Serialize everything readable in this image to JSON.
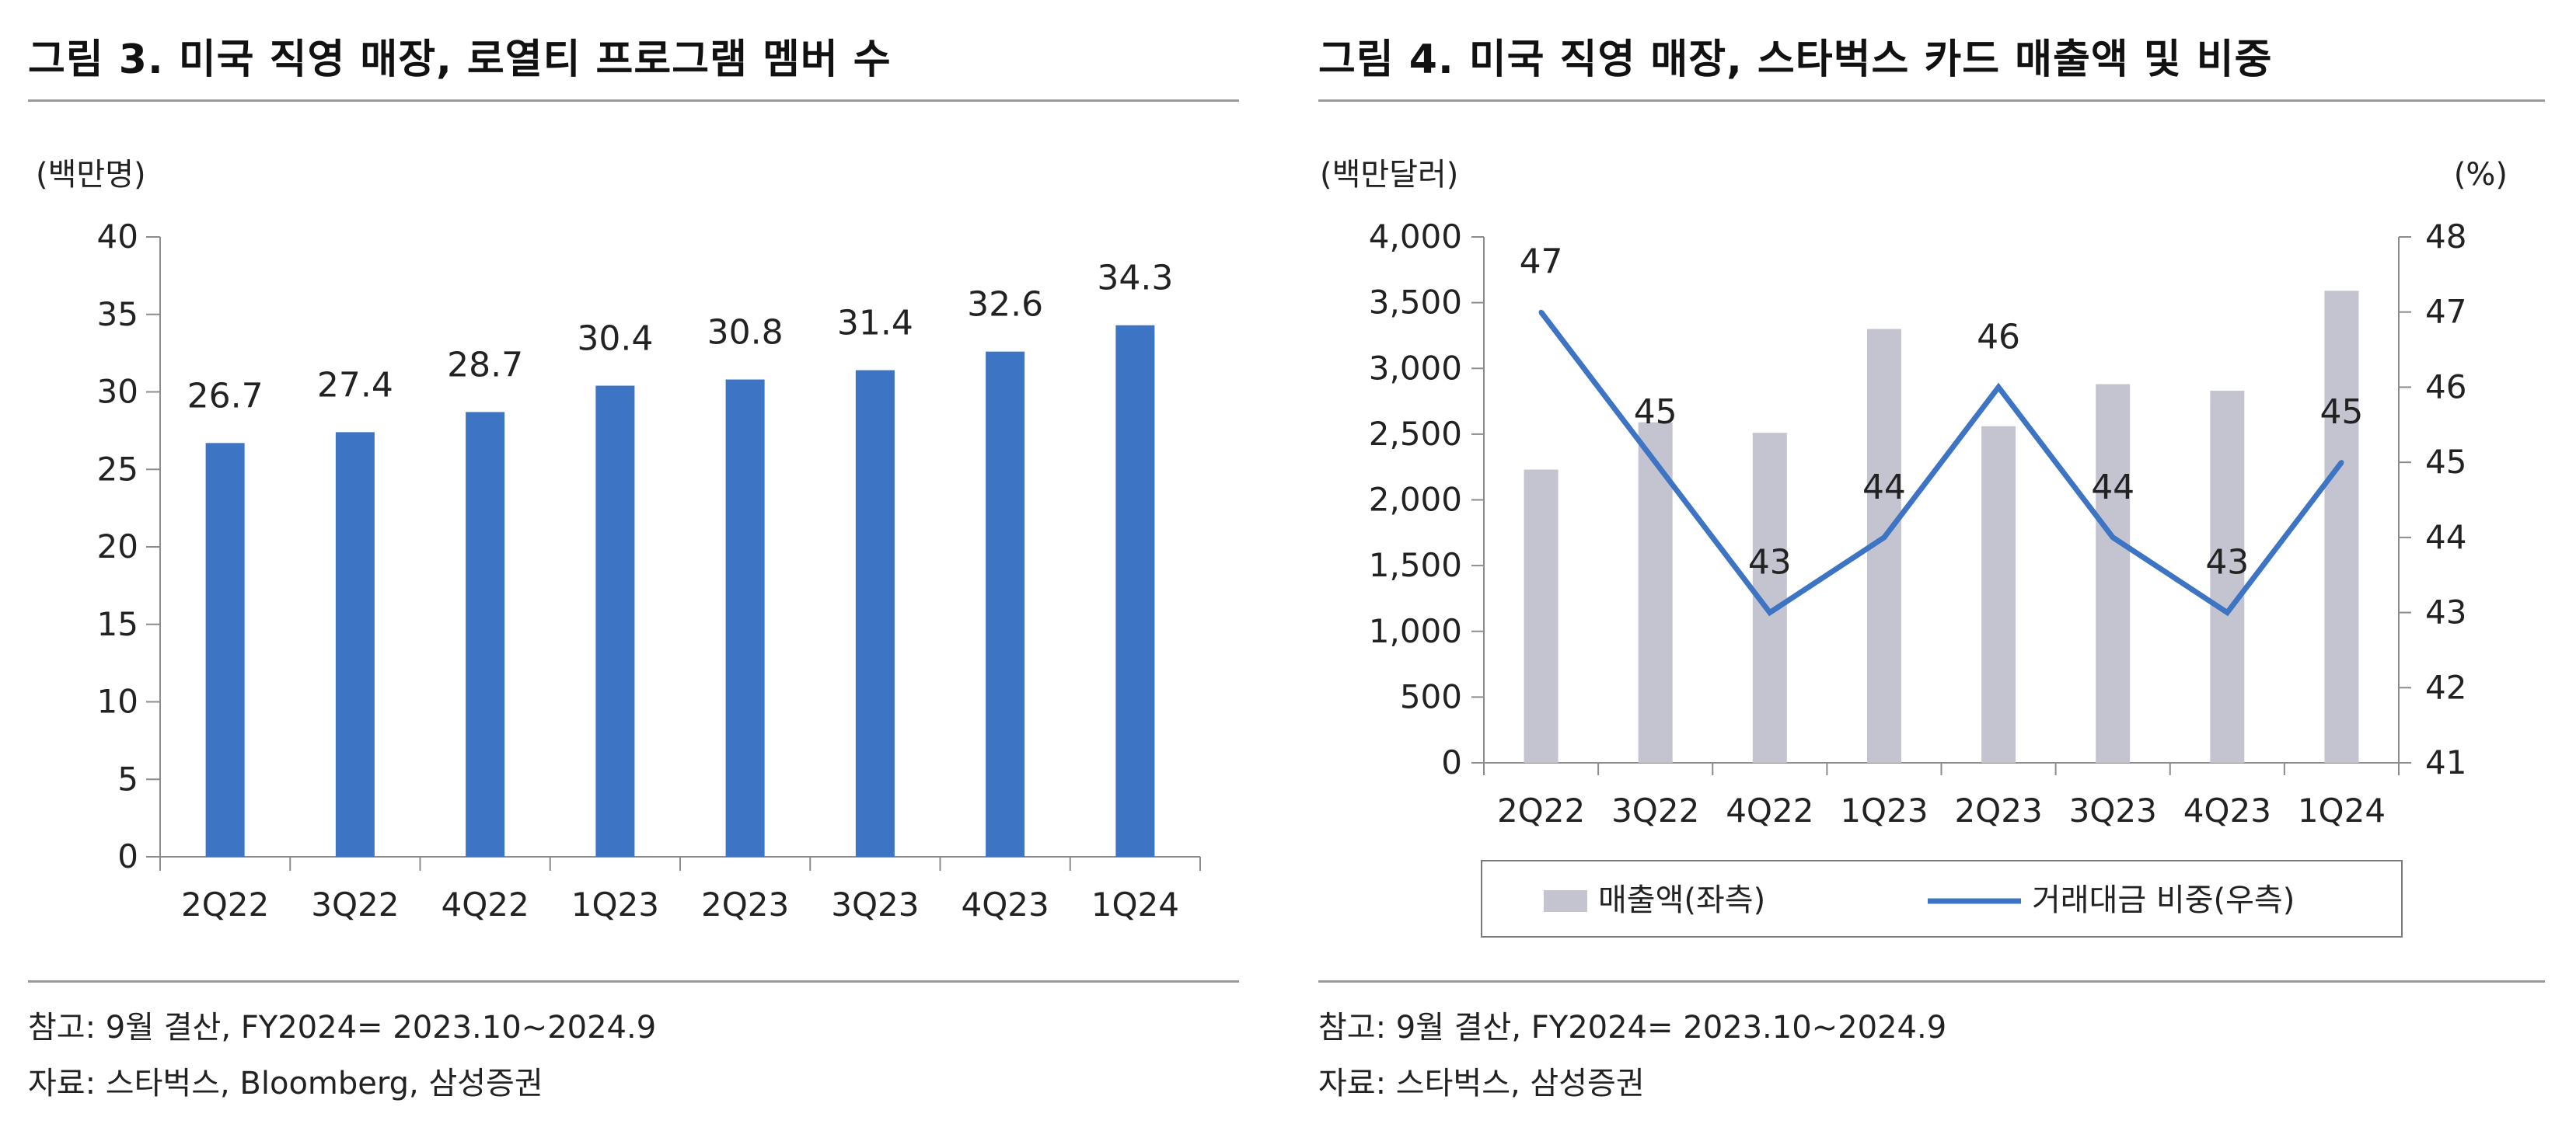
{
  "left": {
    "title": "그림 3. 미국 직영 매장, 로열티 프로그램 멤버 수",
    "note": "참고: 9월 결산, FY2024= 2023.10~2024.9",
    "source": "자료: 스타벅스, Bloomberg, 삼성증권"
  },
  "right": {
    "title": "그림 4. 미국 직영 매장, 스타벅스 카드 매출액 및 비중",
    "note": "참고: 9월 결산, FY2024= 2023.10~2024.9",
    "source": "자료: 스타벅스, 삼성증권"
  },
  "colors": {
    "bar": "#3d74c3",
    "gray_bar": "#c3c4d0",
    "line": "#3d74c3",
    "axis": "#8c8c8c"
  },
  "chart_data": [
    {
      "type": "bar",
      "title": "미국 직영 매장, 로열티 프로그램 멤버 수",
      "ylabel": "(백만명)",
      "categories": [
        "2Q22",
        "3Q22",
        "4Q22",
        "1Q23",
        "2Q23",
        "3Q23",
        "4Q23",
        "1Q24"
      ],
      "values": [
        26.7,
        27.4,
        28.7,
        30.4,
        30.8,
        31.4,
        32.6,
        34.3
      ],
      "labels": [
        "26.7",
        "27.4",
        "28.7",
        "30.4",
        "30.8",
        "31.4",
        "32.6",
        "34.3"
      ],
      "ylim": [
        0,
        40
      ],
      "yticks": [
        "0",
        "5",
        "10",
        "15",
        "20",
        "25",
        "30",
        "35",
        "40"
      ]
    },
    {
      "type": "bar+line",
      "title": "미국 직영 매장, 스타벅스 카드 매출액 및 비중",
      "ylabel_left": "(백만달러)",
      "ylabel_right": "(%)",
      "categories": [
        "2Q22",
        "3Q22",
        "4Q22",
        "1Q23",
        "2Q23",
        "3Q23",
        "4Q23",
        "1Q24"
      ],
      "series": [
        {
          "name": "매출액(좌측)",
          "axis": "left",
          "type": "bar",
          "values": [
            2230,
            2590,
            2510,
            3300,
            2560,
            2880,
            2830,
            3590
          ]
        },
        {
          "name": "거래대금 비중(우측)",
          "axis": "right",
          "type": "line",
          "values": [
            47,
            45,
            43,
            44,
            46,
            44,
            43,
            45
          ],
          "labels": [
            "47",
            "45",
            "43",
            "44",
            "46",
            "44",
            "43",
            "45"
          ]
        }
      ],
      "ylim_left": [
        0,
        4000
      ],
      "ylim_right": [
        41,
        48
      ],
      "yticks_left": [
        "0",
        "500",
        "1,000",
        "1,500",
        "2,000",
        "2,500",
        "3,000",
        "3,500",
        "4,000"
      ],
      "yticks_right": [
        "41",
        "42",
        "43",
        "44",
        "45",
        "46",
        "47",
        "48"
      ],
      "legend_position": "bottom"
    }
  ]
}
